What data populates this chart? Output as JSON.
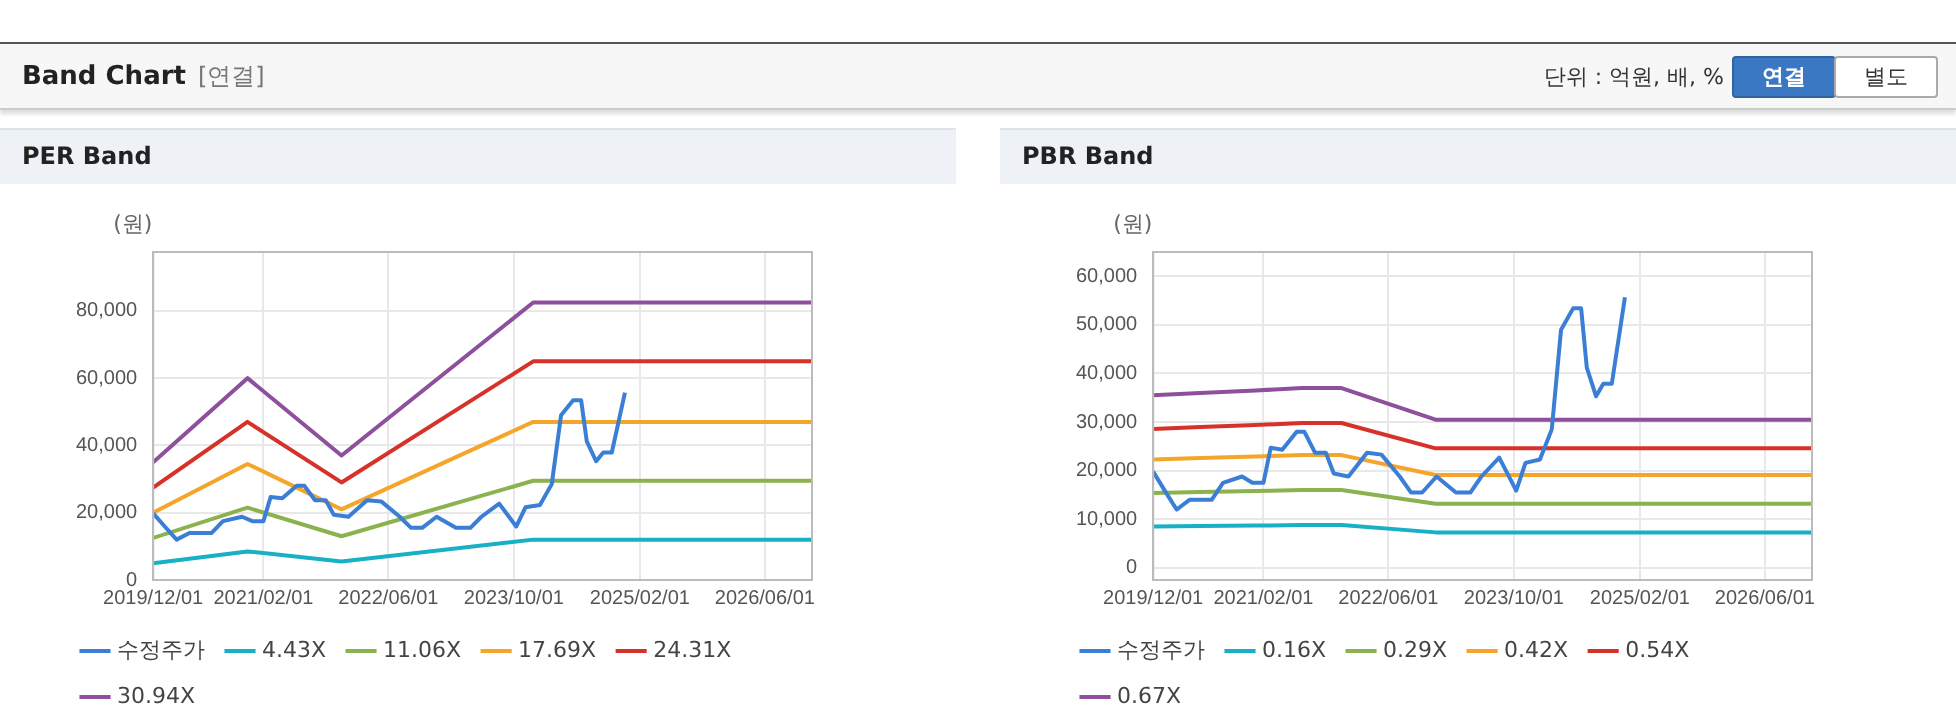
{
  "chart_data": [
    {
      "type": "other",
      "title": "Band Chart",
      "subtitle": "[연결]",
      "annotations": [
        "단위 : 억원, 배, %",
        "연결",
        "별도"
      ]
    },
    {
      "type": "line",
      "title": "PER Band",
      "ylabel": "(원)",
      "marker": "none",
      "grid": true,
      "legend": "bottom",
      "xlim": [
        "2019-12-01",
        "2026-12-01"
      ],
      "xticks": [
        {
          "value": "2019-12-01",
          "label": "2019/12/01"
        },
        {
          "value": "2021-02-01",
          "label": "2021/02/01"
        },
        {
          "value": "2022-06-01",
          "label": "2022/06/01"
        },
        {
          "value": "2023-10-01",
          "label": "2023/10/01"
        },
        {
          "value": "2025-02-01",
          "label": "2025/02/01"
        },
        {
          "value": "2026-06-01",
          "label": "2026/06/01"
        }
      ],
      "ylim": [
        0,
        97500
      ],
      "yticks": [
        {
          "value": 0,
          "label": "0"
        },
        {
          "value": 20000,
          "label": "20,000"
        },
        {
          "value": 40000,
          "label": "40,000"
        },
        {
          "value": 60000,
          "label": "60,000"
        },
        {
          "value": 80000,
          "label": "80,000"
        }
      ],
      "series": [
        {
          "name": "수정주가",
          "color": "#3a7fd5",
          "x": [
            "2019-12-01",
            "2020-01-15",
            "2020-03-01",
            "2020-04-20",
            "2020-07-15",
            "2020-08-28",
            "2020-11-10",
            "2020-12-20",
            "2021-02-01",
            "2021-03-01",
            "2021-04-15",
            "2021-06-10",
            "2021-07-10",
            "2021-08-20",
            "2021-10-01",
            "2021-11-01",
            "2021-12-28",
            "2022-03-10",
            "2022-05-05",
            "2022-07-15",
            "2022-08-28",
            "2022-10-10",
            "2022-12-05",
            "2023-02-18",
            "2023-04-15",
            "2023-05-28",
            "2023-08-05",
            "2023-10-10",
            "2023-11-15",
            "2024-01-10",
            "2024-02-25",
            "2024-04-01",
            "2024-05-18",
            "2024-06-18",
            "2024-07-10",
            "2024-08-15",
            "2024-09-12",
            "2024-10-15",
            "2024-12-05"
          ],
          "values": [
            19800,
            15900,
            12000,
            14000,
            14000,
            17500,
            18800,
            17500,
            17500,
            24700,
            24300,
            28000,
            28000,
            23700,
            23700,
            19400,
            18800,
            23700,
            23300,
            18800,
            15500,
            15500,
            18800,
            15500,
            15500,
            18800,
            22700,
            15900,
            21600,
            22300,
            28500,
            49000,
            53400,
            53400,
            41200,
            35300,
            37900,
            37900,
            55700
          ]
        },
        {
          "name": "4.43X",
          "color": "#17b0c4",
          "x": [
            "2019-12-01",
            "2020-12-01",
            "2021-12-01",
            "2023-12-15",
            "2026-12-01"
          ],
          "values": [
            5000,
            8500,
            5500,
            12000,
            12000
          ]
        },
        {
          "name": "11.06X",
          "color": "#8bb24e",
          "x": [
            "2019-12-01",
            "2020-12-01",
            "2021-12-01",
            "2023-12-15",
            "2026-12-01"
          ],
          "values": [
            12500,
            21500,
            13000,
            29500,
            29500
          ]
        },
        {
          "name": "17.69X",
          "color": "#f5a52a",
          "x": [
            "2019-12-01",
            "2020-12-01",
            "2021-12-01",
            "2023-12-15",
            "2026-12-01"
          ],
          "values": [
            20000,
            34500,
            21000,
            47000,
            47000
          ]
        },
        {
          "name": "24.31X",
          "color": "#d6322a",
          "x": [
            "2019-12-01",
            "2020-12-01",
            "2021-12-01",
            "2023-12-15",
            "2026-12-01"
          ],
          "values": [
            27500,
            47000,
            29000,
            65000,
            65000
          ]
        },
        {
          "name": "30.94X",
          "color": "#8e4f9c",
          "x": [
            "2019-12-01",
            "2020-12-01",
            "2021-12-01",
            "2023-12-15",
            "2026-12-01"
          ],
          "values": [
            35000,
            60000,
            37000,
            82500,
            82500
          ]
        }
      ]
    },
    {
      "type": "line",
      "title": "PBR Band",
      "ylabel": "(원)",
      "marker": "none",
      "grid": true,
      "legend": "bottom",
      "xlim": [
        "2019-12-01",
        "2026-12-01"
      ],
      "xticks": [
        {
          "value": "2019-12-01",
          "label": "2019/12/01"
        },
        {
          "value": "2021-02-01",
          "label": "2021/02/01"
        },
        {
          "value": "2022-06-01",
          "label": "2022/06/01"
        },
        {
          "value": "2023-10-01",
          "label": "2023/10/01"
        },
        {
          "value": "2025-02-01",
          "label": "2025/02/01"
        },
        {
          "value": "2026-06-01",
          "label": "2026/06/01"
        }
      ],
      "ylim": [
        -2500,
        65000
      ],
      "yticks": [
        {
          "value": 0,
          "label": "0"
        },
        {
          "value": 10000,
          "label": "10,000"
        },
        {
          "value": 20000,
          "label": "20,000"
        },
        {
          "value": 30000,
          "label": "30,000"
        },
        {
          "value": 40000,
          "label": "40,000"
        },
        {
          "value": 50000,
          "label": "50,000"
        },
        {
          "value": 60000,
          "label": "60,000"
        }
      ],
      "series": [
        {
          "name": "수정주가",
          "color": "#3a7fd5",
          "x": [
            "2019-12-01",
            "2020-01-15",
            "2020-03-01",
            "2020-04-20",
            "2020-07-15",
            "2020-08-28",
            "2020-11-10",
            "2020-12-20",
            "2021-02-01",
            "2021-03-01",
            "2021-04-15",
            "2021-06-10",
            "2021-07-10",
            "2021-08-20",
            "2021-10-01",
            "2021-11-01",
            "2021-12-28",
            "2022-03-10",
            "2022-05-05",
            "2022-07-15",
            "2022-08-28",
            "2022-10-10",
            "2022-12-05",
            "2023-02-18",
            "2023-04-15",
            "2023-05-28",
            "2023-08-05",
            "2023-10-10",
            "2023-11-15",
            "2024-01-10",
            "2024-02-25",
            "2024-04-01",
            "2024-05-18",
            "2024-06-18",
            "2024-07-10",
            "2024-08-15",
            "2024-09-12",
            "2024-10-15",
            "2024-12-05"
          ],
          "values": [
            19800,
            15900,
            12000,
            14000,
            14000,
            17500,
            18800,
            17500,
            17500,
            24700,
            24300,
            28000,
            28000,
            23700,
            23700,
            19400,
            18800,
            23700,
            23300,
            18800,
            15500,
            15500,
            18800,
            15500,
            15500,
            18800,
            22700,
            15900,
            21600,
            22300,
            28500,
            49000,
            53400,
            53400,
            41200,
            35300,
            37900,
            37900,
            55700
          ]
        },
        {
          "name": "0.16X",
          "color": "#17b0c4",
          "x": [
            "2019-12-01",
            "2020-06-01",
            "2021-01-01",
            "2021-07-01",
            "2021-12-01",
            "2022-12-01",
            "2026-12-01"
          ],
          "values": [
            8500,
            8600,
            8700,
            8800,
            8800,
            7300,
            7300
          ]
        },
        {
          "name": "0.29X",
          "color": "#8bb24e",
          "x": [
            "2019-12-01",
            "2020-06-01",
            "2021-01-01",
            "2021-07-01",
            "2021-12-01",
            "2022-12-01",
            "2026-12-01"
          ],
          "values": [
            15400,
            15600,
            15800,
            16000,
            16000,
            13200,
            13200
          ]
        },
        {
          "name": "0.42X",
          "color": "#f5a52a",
          "x": [
            "2019-12-01",
            "2020-06-01",
            "2021-01-01",
            "2021-07-01",
            "2021-12-01",
            "2022-12-01",
            "2026-12-01"
          ],
          "values": [
            22300,
            22600,
            22900,
            23200,
            23200,
            19100,
            19100
          ]
        },
        {
          "name": "0.54X",
          "color": "#d6322a",
          "x": [
            "2019-12-01",
            "2020-06-01",
            "2021-01-01",
            "2021-07-01",
            "2021-12-01",
            "2022-12-01",
            "2026-12-01"
          ],
          "values": [
            28600,
            29000,
            29400,
            29800,
            29800,
            24600,
            24600
          ]
        },
        {
          "name": "0.67X",
          "color": "#8e4f9c",
          "x": [
            "2019-12-01",
            "2020-06-01",
            "2021-01-01",
            "2021-07-01",
            "2021-12-01",
            "2022-12-01",
            "2026-12-01"
          ],
          "values": [
            35500,
            36000,
            36500,
            37000,
            37000,
            30500,
            30500
          ]
        }
      ]
    }
  ]
}
